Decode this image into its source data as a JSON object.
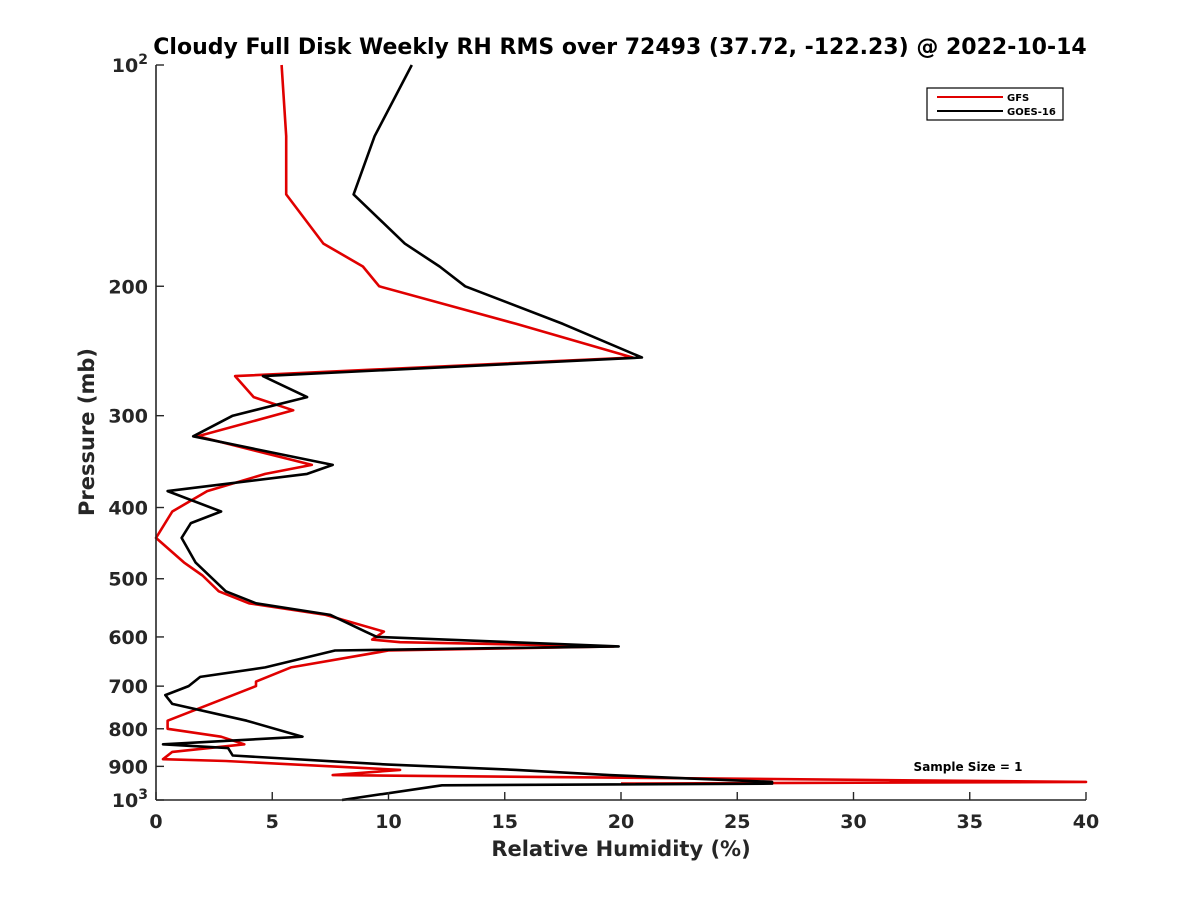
{
  "chart_data": {
    "type": "line",
    "title": "Cloudy Full Disk Weekly RH RMS over 72493 (37.72, -122.23) @ 2022-10-14",
    "xlabel": "Relative Humidity (%)",
    "ylabel": "Pressure (mb)",
    "xlim": [
      0,
      40
    ],
    "ylim": [
      100,
      1000
    ],
    "y_scale": "log",
    "y_reversed": true,
    "grid": false,
    "legend_position": "top-right",
    "x_ticks": [
      "0",
      "5",
      "10",
      "15",
      "20",
      "25",
      "30",
      "35",
      "40"
    ],
    "y_ticks": [
      {
        "value": 100,
        "base": "10",
        "exp": "2"
      },
      {
        "value": 200,
        "label": "200"
      },
      {
        "value": 300,
        "label": "300"
      },
      {
        "value": 400,
        "label": "400"
      },
      {
        "value": 500,
        "label": "500"
      },
      {
        "value": 600,
        "label": "600"
      },
      {
        "value": 700,
        "label": "700"
      },
      {
        "value": 800,
        "label": "800"
      },
      {
        "value": 900,
        "label": "900"
      },
      {
        "value": 1000,
        "base": "10",
        "exp": "3"
      }
    ],
    "annotation": "Sample Size = 1",
    "series": [
      {
        "name": "GFS",
        "color": "#e00000",
        "points": [
          [
            5.4,
            100
          ],
          [
            5.6,
            125
          ],
          [
            5.6,
            150
          ],
          [
            7.2,
            175
          ],
          [
            8.9,
            188
          ],
          [
            9.6,
            200
          ],
          [
            15.5,
            225
          ],
          [
            20.5,
            250
          ],
          [
            3.4,
            265
          ],
          [
            4.2,
            283
          ],
          [
            5.9,
            295
          ],
          [
            1.8,
            320
          ],
          [
            6.7,
            350
          ],
          [
            4.7,
            360
          ],
          [
            2.2,
            380
          ],
          [
            0.7,
            405
          ],
          [
            0.0,
            440
          ],
          [
            1.2,
            475
          ],
          [
            2.0,
            495
          ],
          [
            2.7,
            520
          ],
          [
            4.0,
            540
          ],
          [
            7.3,
            560
          ],
          [
            9.8,
            590
          ],
          [
            9.3,
            605
          ],
          [
            10.5,
            610
          ],
          [
            19.7,
            618
          ],
          [
            10.0,
            626
          ],
          [
            5.8,
            660
          ],
          [
            4.3,
            690
          ],
          [
            4.3,
            700
          ],
          [
            0.5,
            780
          ],
          [
            0.5,
            800
          ],
          [
            2.8,
            820
          ],
          [
            3.8,
            840
          ],
          [
            0.7,
            860
          ],
          [
            0.3,
            880
          ],
          [
            3.0,
            885
          ],
          [
            10.5,
            910
          ],
          [
            7.6,
            925
          ],
          [
            40.0,
            945
          ],
          [
            20.0,
            950
          ]
        ]
      },
      {
        "name": "GOES-16",
        "color": "#000000",
        "points": [
          [
            11.0,
            100
          ],
          [
            9.4,
            125
          ],
          [
            8.5,
            150
          ],
          [
            10.7,
            175
          ],
          [
            12.2,
            188
          ],
          [
            13.3,
            200
          ],
          [
            17.5,
            225
          ],
          [
            20.9,
            250
          ],
          [
            4.6,
            265
          ],
          [
            6.5,
            283
          ],
          [
            3.3,
            300
          ],
          [
            1.6,
            320
          ],
          [
            7.6,
            350
          ],
          [
            6.5,
            360
          ],
          [
            0.5,
            380
          ],
          [
            2.8,
            405
          ],
          [
            1.5,
            420
          ],
          [
            1.1,
            440
          ],
          [
            1.7,
            475
          ],
          [
            3.0,
            520
          ],
          [
            4.3,
            540
          ],
          [
            7.5,
            560
          ],
          [
            9.0,
            590
          ],
          [
            9.5,
            600
          ],
          [
            19.9,
            618
          ],
          [
            7.7,
            626
          ],
          [
            4.7,
            660
          ],
          [
            1.9,
            680
          ],
          [
            1.4,
            700
          ],
          [
            0.4,
            720
          ],
          [
            0.7,
            740
          ],
          [
            3.9,
            780
          ],
          [
            6.3,
            820
          ],
          [
            0.3,
            840
          ],
          [
            3.1,
            850
          ],
          [
            3.3,
            870
          ],
          [
            10.0,
            895
          ],
          [
            15.5,
            910
          ],
          [
            19.5,
            925
          ],
          [
            26.5,
            945
          ],
          [
            26.5,
            950
          ],
          [
            12.3,
            955
          ],
          [
            8.0,
            1000
          ]
        ]
      }
    ]
  }
}
